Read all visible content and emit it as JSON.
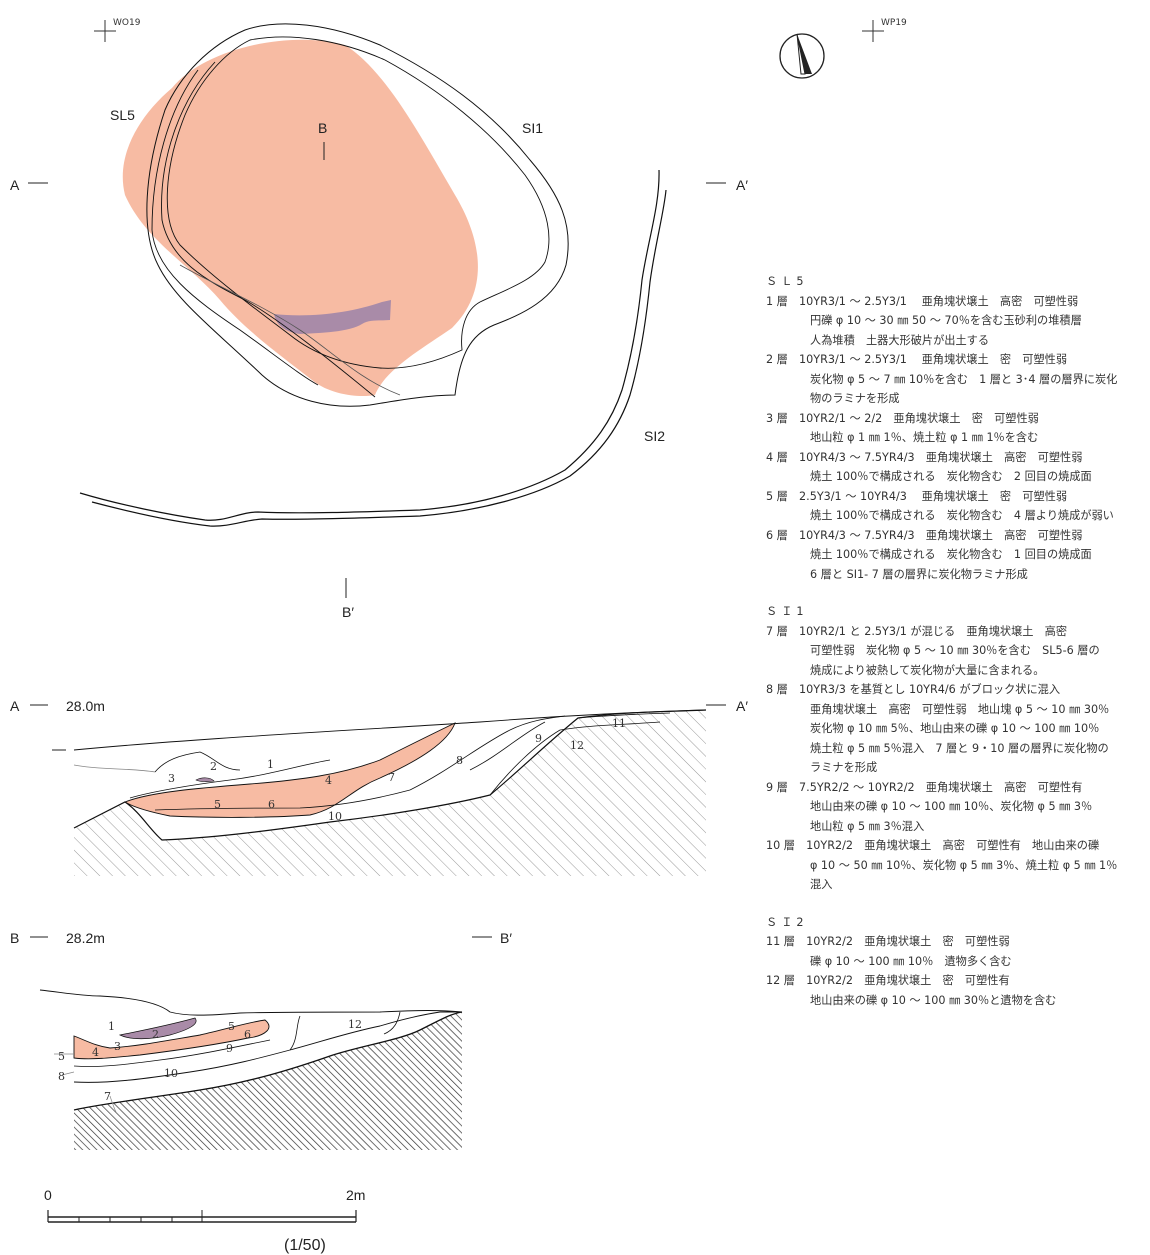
{
  "plan": {
    "grid_left": "WO19",
    "grid_right": "WP19",
    "features": {
      "sl5": "SL5",
      "si1": "SI1",
      "si2": "SI2"
    },
    "section_marks": {
      "a": "A",
      "a_prime": "A′",
      "b": "B",
      "b_prime": "B′"
    },
    "colors": {
      "burnt_soil": "#f7bba3",
      "charcoal": "#a98ba8"
    }
  },
  "section_a": {
    "left_label": "A",
    "elevation": "28.0m",
    "right_label": "A′",
    "layers": [
      "1",
      "2",
      "3",
      "4",
      "5",
      "6",
      "7",
      "8",
      "9",
      "10",
      "11",
      "12"
    ]
  },
  "section_b": {
    "left_label": "B",
    "elevation": "28.2m",
    "right_label": "B′",
    "layers": [
      "1",
      "2",
      "3",
      "4",
      "5",
      "6",
      "8",
      "9",
      "10",
      "12",
      "7",
      "5",
      "8"
    ]
  },
  "scale": {
    "start": "0",
    "end": "2m",
    "ratio": "(1/50)"
  },
  "legend": [
    {
      "title": "ＳＬ5",
      "items": [
        {
          "head": "1 層　10YR3/1 ～ 2.5Y3/1　 亜角塊状壌土　高密　可塑性弱",
          "lines": [
            "円礫 φ 10 ～ 30 ㎜ 50 ～ 70％を含む玉砂利の堆積層",
            "人為堆積　土器大形破片が出土する"
          ]
        },
        {
          "head": "2 層　10YR3/1 ～ 2.5Y3/1　 亜角塊状壌土　密　可塑性弱",
          "lines": [
            "炭化物 φ 5 ～ 7 ㎜ 10％を含む　1 層と 3･4 層の層界に炭化",
            "物のラミナを形成"
          ]
        },
        {
          "head": "3 層　10YR2/1 ～ 2/2　亜角塊状壌土　密　可塑性弱",
          "lines": [
            "地山粒 φ 1 ㎜ 1％、焼土粒 φ 1 ㎜ 1％を含む"
          ]
        },
        {
          "head": "4 層　10YR4/3 ～ 7.5YR4/3　亜角塊状壌土　高密　可塑性弱",
          "lines": [
            "焼土 100％で構成される　炭化物含む　2 回目の焼成面"
          ]
        },
        {
          "head": "5 層　2.5Y3/1 ～ 10YR4/3　 亜角塊状壌土　密　可塑性弱",
          "lines": [
            "焼土 100％で構成される　炭化物含む　4 層より焼成が弱い"
          ]
        },
        {
          "head": "6 層　10YR4/3 ～ 7.5YR4/3　亜角塊状壌土　高密　可塑性弱",
          "lines": [
            "焼土 100％で構成される　炭化物含む　1 回目の焼成面",
            "6 層と SI1- 7 層の層界に炭化物ラミナ形成"
          ]
        }
      ]
    },
    {
      "title": "ＳＩ1",
      "items": [
        {
          "head": "7 層　10YR2/1 と 2.5Y3/1 が混じる　亜角塊状壌土　高密",
          "lines": [
            "可塑性弱　炭化物 φ 5 ～ 10 ㎜ 30％を含む　SL5-6 層の",
            "焼成により被熱して炭化物が大量に含まれる。"
          ]
        },
        {
          "head": "8 層　10YR3/3 を基質とし 10YR4/6 がブロック状に混入",
          "lines": [
            "亜角塊状壌土　高密　可塑性弱　地山塊 φ 5 ～ 10 ㎜ 30％",
            "炭化物 φ 10 ㎜ 5％、地山由来の礫 φ 10 ～ 100 ㎜ 10％",
            "焼土粒 φ 5 ㎜ 5％混入　7 層と 9・10 層の層界に炭化物の",
            "ラミナを形成"
          ]
        },
        {
          "head": "9 層　7.5YR2/2 ～ 10YR2/2　亜角塊状壌土　高密　可塑性有",
          "lines": [
            "地山由来の礫 φ 10 ～ 100 ㎜ 10％、炭化物 φ 5 ㎜ 3％",
            "地山粒 φ 5 ㎜ 3％混入"
          ]
        },
        {
          "head": "10 層　10YR2/2　亜角塊状壌土　高密　可塑性有　地山由来の礫",
          "lines": [
            "φ 10 ～ 50 ㎜ 10％、炭化物 φ 5 ㎜ 3％、焼土粒 φ 5 ㎜ 1％",
            "混入"
          ]
        }
      ]
    },
    {
      "title": "ＳＩ2",
      "items": [
        {
          "head": "11 層　10YR2/2　亜角塊状壌土　密　可塑性弱",
          "lines": [
            "礫 φ 10 ～ 100 ㎜ 10％　遺物多く含む"
          ]
        },
        {
          "head": "12 層　10YR2/2　亜角塊状壌土　密　可塑性有",
          "lines": [
            "地山由来の礫 φ 10 ～ 100 ㎜ 30％と遺物を含む"
          ]
        }
      ]
    }
  ]
}
